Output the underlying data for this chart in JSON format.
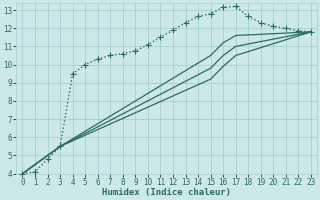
{
  "bg_color": "#cce8e8",
  "grid_color": "#a8cece",
  "line_color": "#2a6b5e",
  "xlabel": "Humidex (Indice chaleur)",
  "xlim": [
    -0.5,
    23.5
  ],
  "ylim": [
    4,
    13.4
  ],
  "xticks": [
    0,
    1,
    2,
    3,
    4,
    5,
    6,
    7,
    8,
    9,
    10,
    11,
    12,
    13,
    14,
    15,
    16,
    17,
    18,
    19,
    20,
    21,
    22,
    23
  ],
  "yticks": [
    4,
    5,
    6,
    7,
    8,
    9,
    10,
    11,
    12,
    13
  ],
  "curve1_dotted": {
    "x": [
      0,
      1,
      2,
      3,
      4,
      5,
      6,
      7,
      8,
      9,
      10,
      11,
      12,
      13,
      14,
      15,
      16,
      17,
      18,
      19,
      20,
      21,
      22,
      23
    ],
    "y": [
      4.0,
      4.1,
      4.8,
      5.5,
      9.5,
      10.0,
      10.3,
      10.5,
      10.6,
      10.75,
      11.1,
      11.5,
      11.9,
      12.3,
      12.65,
      12.8,
      13.15,
      13.2,
      12.65,
      12.3,
      12.1,
      12.0,
      11.85,
      11.8
    ],
    "linestyle": ":",
    "marker": "+",
    "markersize": 4,
    "linewidth": 1.0
  },
  "curve2_solid_top": {
    "x": [
      0,
      3,
      15,
      16,
      17,
      23
    ],
    "y": [
      4.0,
      5.5,
      10.5,
      11.2,
      11.6,
      11.8
    ],
    "linestyle": "-",
    "linewidth": 0.9
  },
  "curve3_solid_mid": {
    "x": [
      0,
      3,
      15,
      16,
      17,
      23
    ],
    "y": [
      4.0,
      5.5,
      9.8,
      10.5,
      11.0,
      11.8
    ],
    "linestyle": "-",
    "linewidth": 0.9
  },
  "curve4_solid_bot": {
    "x": [
      0,
      3,
      15,
      16,
      17,
      23
    ],
    "y": [
      4.0,
      5.5,
      9.2,
      9.9,
      10.5,
      11.8
    ],
    "linestyle": "-",
    "linewidth": 0.9
  }
}
